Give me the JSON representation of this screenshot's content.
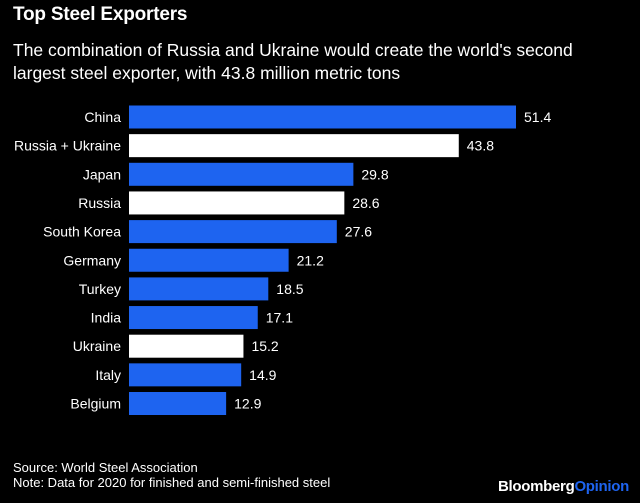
{
  "title": "Top Steel Exporters",
  "subtitle": {
    "line1": "The combination of Russia and Ukraine would create the world's second",
    "line2": "largest steel exporter, with 43.8 million metric tons"
  },
  "chart_data": {
    "type": "bar",
    "orientation": "horizontal",
    "categories": [
      "China",
      "Russia + Ukraine",
      "Japan",
      "Russia",
      "South Korea",
      "Germany",
      "Turkey",
      "India",
      "Ukraine",
      "Italy",
      "Belgium"
    ],
    "values": [
      51.4,
      43.8,
      29.8,
      28.6,
      27.6,
      21.2,
      18.5,
      17.1,
      15.2,
      14.9,
      12.9
    ],
    "value_labels": [
      "51.4",
      "43.8",
      "29.8",
      "28.6",
      "27.6",
      "21.2",
      "18.5",
      "17.1",
      "15.2",
      "14.9",
      "12.9"
    ],
    "highlighted": [
      "Russia + Ukraine",
      "Russia",
      "Ukraine"
    ],
    "colors": {
      "default": "#1e64f0",
      "highlight": "#ffffff"
    },
    "xlim": [
      0,
      51.4
    ],
    "unit": "million metric tons"
  },
  "source": {
    "line1": "Source: World Steel Association",
    "line2": "Note: Data for 2020 for finished and semi-finished steel"
  },
  "brand": {
    "part1": "Bloomberg",
    "part2": "Opinion"
  }
}
